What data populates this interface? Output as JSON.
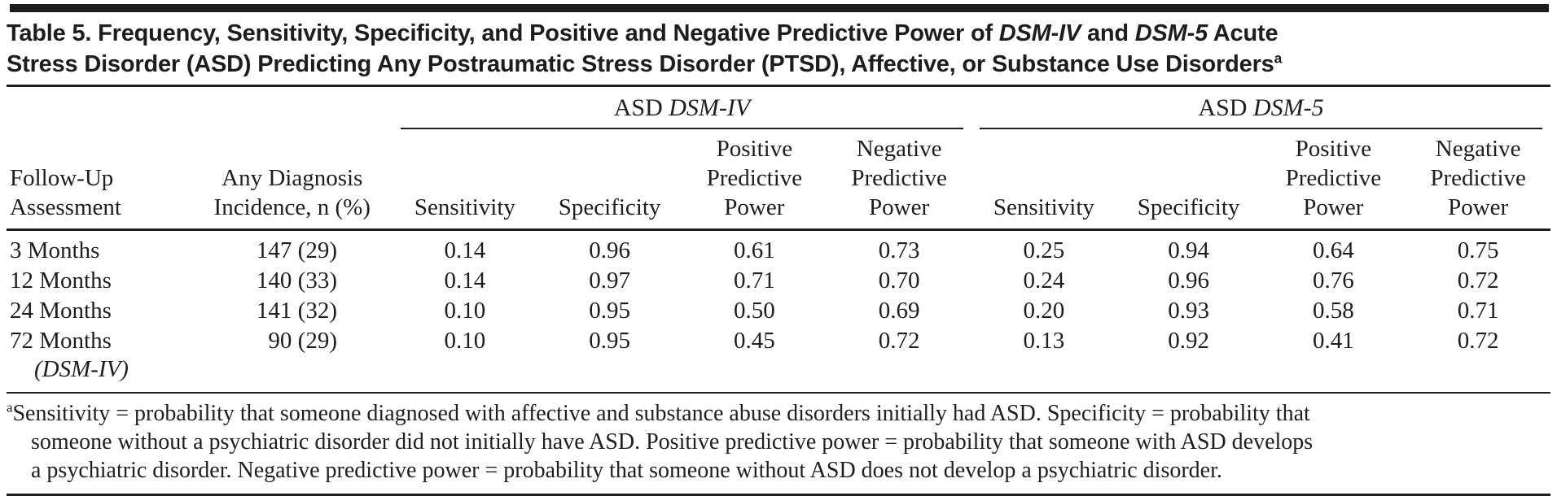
{
  "accent_color": "#1d1d1b",
  "title": {
    "line1": [
      {
        "t": "Table 5. Frequency, Sensitivity, Specificity, and Positive and Negative Predictive Power of "
      },
      {
        "t": "DSM-IV",
        "i": true
      },
      {
        "t": " and "
      },
      {
        "t": "DSM-5",
        "i": true
      },
      {
        "t": " Acute"
      }
    ],
    "line2": [
      {
        "t": "Stress Disorder (ASD) Predicting Any Postraumatic Stress Disorder (PTSD), Affective, or Substance Use Disorders"
      },
      {
        "t": "a",
        "s": true
      }
    ]
  },
  "table": {
    "groups": [
      {
        "label": [
          {
            "t": "ASD "
          },
          {
            "t": "DSM-IV",
            "i": true
          }
        ]
      },
      {
        "label": [
          {
            "t": "ASD "
          },
          {
            "t": "DSM-5",
            "i": true
          }
        ]
      }
    ],
    "headers": {
      "follow_up": "Follow-Up\nAssessment",
      "incidence": "Any Diagnosis\nIncidence, n (%)",
      "sensitivity": "Sensitivity",
      "specificity": "Specificity",
      "ppp": "Positive\nPredictive\nPower",
      "npp": "Negative\nPredictive\nPower"
    },
    "rows": [
      {
        "label": "3 Months",
        "label2": "",
        "incidence": "147 (29)",
        "values": [
          "0.14",
          "0.96",
          "0.61",
          "0.73",
          "0.25",
          "0.94",
          "0.64",
          "0.75"
        ]
      },
      {
        "label": "12 Months",
        "label2": "",
        "incidence": "140 (33)",
        "values": [
          "0.14",
          "0.97",
          "0.71",
          "0.70",
          "0.24",
          "0.96",
          "0.76",
          "0.72"
        ]
      },
      {
        "label": "24 Months",
        "label2": "",
        "incidence": "141 (32)",
        "values": [
          "0.10",
          "0.95",
          "0.50",
          "0.69",
          "0.20",
          "0.93",
          "0.58",
          "0.71"
        ]
      },
      {
        "label": "72 Months",
        "label2": "(DSM-IV)",
        "incidence": "90 (29)",
        "values": [
          "0.10",
          "0.95",
          "0.45",
          "0.72",
          "0.13",
          "0.92",
          "0.41",
          "0.72"
        ]
      }
    ]
  },
  "footnote": {
    "lines": [
      [
        {
          "t": "a",
          "s": true
        },
        {
          "t": "Sensitivity = probability that someone diagnosed with affective and substance abuse disorders initially had ASD. Specificity = probability that"
        }
      ],
      [
        {
          "t": "someone without a psychiatric disorder did not initially have ASD. Positive predictive power = probability that someone with ASD develops"
        }
      ],
      [
        {
          "t": "a psychiatric disorder. Negative predictive power = probability that someone without ASD does not develop a psychiatric disorder."
        }
      ]
    ]
  }
}
